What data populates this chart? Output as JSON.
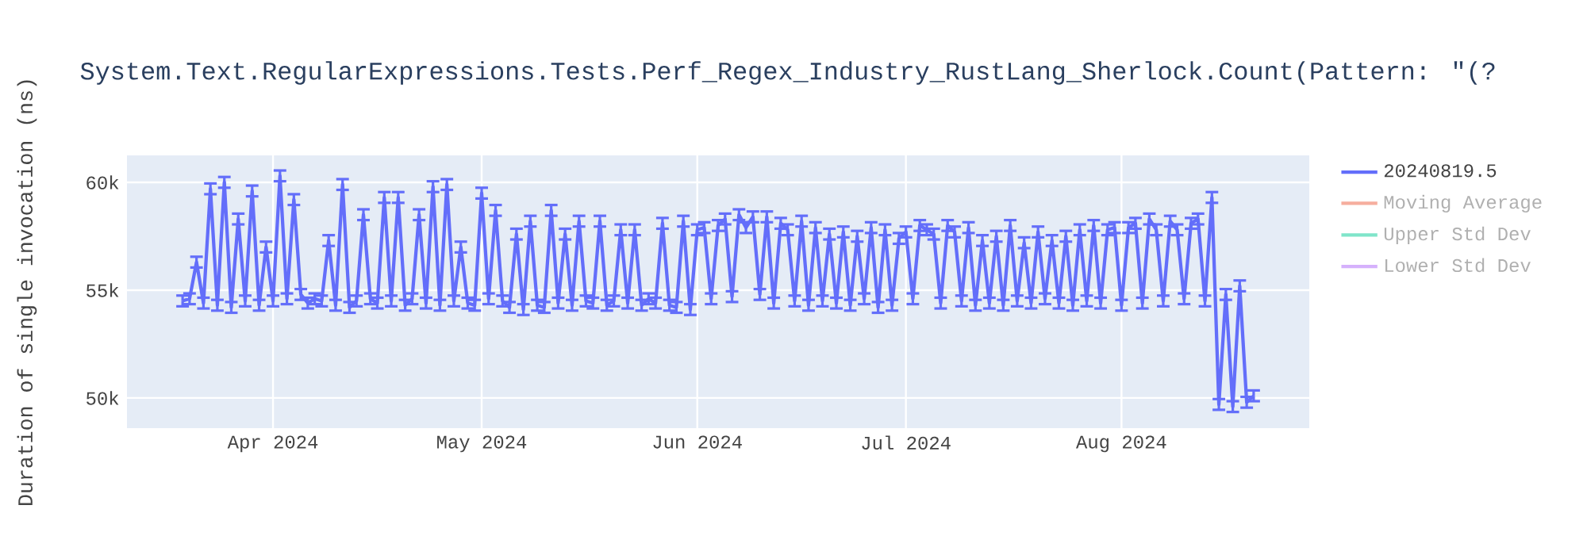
{
  "chart_data": {
    "type": "line",
    "title": "System.Text.RegularExpressions.Tests.Perf_Regex_Industry_RustLang_Sherlock.Count(Pattern: \"(?",
    "ylabel": "Duration of single invocation (ns)",
    "x": [
      "2024-03-19",
      "2024-03-20",
      "2024-03-21",
      "2024-03-22",
      "2024-03-23",
      "2024-03-24",
      "2024-03-25",
      "2024-03-26",
      "2024-03-27",
      "2024-03-28",
      "2024-03-29",
      "2024-03-30",
      "2024-03-31",
      "2024-04-01",
      "2024-04-02",
      "2024-04-03",
      "2024-04-04",
      "2024-04-05",
      "2024-04-06",
      "2024-04-07",
      "2024-04-08",
      "2024-04-09",
      "2024-04-10",
      "2024-04-11",
      "2024-04-12",
      "2024-04-13",
      "2024-04-14",
      "2024-04-15",
      "2024-04-16",
      "2024-04-17",
      "2024-04-18",
      "2024-04-19",
      "2024-04-20",
      "2024-04-21",
      "2024-04-22",
      "2024-04-23",
      "2024-04-24",
      "2024-04-25",
      "2024-04-26",
      "2024-04-27",
      "2024-04-28",
      "2024-04-29",
      "2024-04-30",
      "2024-05-01",
      "2024-05-02",
      "2024-05-03",
      "2024-05-04",
      "2024-05-05",
      "2024-05-06",
      "2024-05-07",
      "2024-05-08",
      "2024-05-09",
      "2024-05-10",
      "2024-05-11",
      "2024-05-12",
      "2024-05-13",
      "2024-05-14",
      "2024-05-15",
      "2024-05-16",
      "2024-05-17",
      "2024-05-18",
      "2024-05-19",
      "2024-05-20",
      "2024-05-21",
      "2024-05-22",
      "2024-05-23",
      "2024-05-24",
      "2024-05-25",
      "2024-05-26",
      "2024-05-27",
      "2024-05-28",
      "2024-05-29",
      "2024-05-30",
      "2024-05-31",
      "2024-06-01",
      "2024-06-02",
      "2024-06-03",
      "2024-06-04",
      "2024-06-05",
      "2024-06-06",
      "2024-06-07",
      "2024-06-08",
      "2024-06-09",
      "2024-06-10",
      "2024-06-11",
      "2024-06-12",
      "2024-06-13",
      "2024-06-14",
      "2024-06-15",
      "2024-06-16",
      "2024-06-17",
      "2024-06-18",
      "2024-06-19",
      "2024-06-20",
      "2024-06-21",
      "2024-06-22",
      "2024-06-23",
      "2024-06-24",
      "2024-06-25",
      "2024-06-26",
      "2024-06-27",
      "2024-06-28",
      "2024-06-29",
      "2024-06-30",
      "2024-07-01",
      "2024-07-02",
      "2024-07-03",
      "2024-07-04",
      "2024-07-05",
      "2024-07-06",
      "2024-07-07",
      "2024-07-08",
      "2024-07-09",
      "2024-07-10",
      "2024-07-11",
      "2024-07-12",
      "2024-07-13",
      "2024-07-14",
      "2024-07-15",
      "2024-07-16",
      "2024-07-17",
      "2024-07-18",
      "2024-07-19",
      "2024-07-20",
      "2024-07-21",
      "2024-07-22",
      "2024-07-23",
      "2024-07-24",
      "2024-07-25",
      "2024-07-26",
      "2024-07-27",
      "2024-07-28",
      "2024-07-29",
      "2024-07-30",
      "2024-07-31",
      "2024-08-01",
      "2024-08-02",
      "2024-08-03",
      "2024-08-04",
      "2024-08-05",
      "2024-08-06",
      "2024-08-07",
      "2024-08-08",
      "2024-08-09",
      "2024-08-10",
      "2024-08-11",
      "2024-08-12",
      "2024-08-13",
      "2024-08-14",
      "2024-08-15",
      "2024-08-16",
      "2024-08-17",
      "2024-08-18",
      "2024-08-19",
      "2024-08-20"
    ],
    "series": [
      {
        "name": "20240819.5",
        "color": "#636efa",
        "values": [
          54500,
          54600,
          56300,
          54400,
          59700,
          54300,
          60000,
          54200,
          58300,
          54500,
          59600,
          54300,
          57000,
          54500,
          60300,
          54600,
          59200,
          54800,
          54400,
          54600,
          54500,
          57300,
          54300,
          59900,
          54200,
          54500,
          58500,
          54600,
          54400,
          59300,
          54500,
          59300,
          54300,
          54600,
          58500,
          54400,
          59800,
          54300,
          59900,
          54500,
          57000,
          54400,
          54300,
          59500,
          54600,
          58700,
          54500,
          54200,
          57600,
          54100,
          58200,
          54300,
          54200,
          58700,
          54400,
          57600,
          54300,
          58200,
          54500,
          54400,
          58200,
          54300,
          54500,
          57800,
          54400,
          57800,
          54300,
          54600,
          54400,
          58100,
          54300,
          54200,
          58200,
          54100,
          57800,
          57900,
          54600,
          58000,
          58300,
          54700,
          58500,
          57900,
          58400,
          54800,
          58400,
          54400,
          58100,
          57800,
          54500,
          58200,
          54300,
          57900,
          54500,
          57600,
          54400,
          57700,
          54300,
          57500,
          54600,
          57900,
          54200,
          57800,
          54300,
          57400,
          57700,
          54600,
          58000,
          57800,
          57600,
          54400,
          58000,
          57700,
          54500,
          57900,
          54300,
          57300,
          54400,
          57500,
          54300,
          58000,
          54500,
          57200,
          54400,
          57700,
          54600,
          57300,
          54400,
          57500,
          54300,
          57800,
          54500,
          58000,
          54400,
          57800,
          57900,
          54300,
          57900,
          58100,
          54400,
          58300,
          57800,
          54500,
          58200,
          57800,
          54600,
          58100,
          58300,
          54500,
          59300,
          49700,
          54800,
          49600,
          55200,
          49800,
          50100
        ],
        "errors": [
          250,
          250,
          250,
          250,
          250,
          250,
          250,
          250,
          250,
          250,
          250,
          250,
          250,
          250,
          250,
          250,
          250,
          250,
          250,
          250,
          250,
          250,
          250,
          250,
          250,
          250,
          250,
          250,
          250,
          250,
          250,
          250,
          250,
          250,
          250,
          250,
          250,
          250,
          250,
          250,
          250,
          250,
          250,
          250,
          250,
          250,
          250,
          250,
          250,
          250,
          250,
          250,
          250,
          250,
          250,
          250,
          250,
          250,
          250,
          250,
          250,
          250,
          250,
          250,
          250,
          250,
          250,
          250,
          250,
          250,
          250,
          250,
          250,
          250,
          250,
          250,
          250,
          250,
          250,
          250,
          250,
          250,
          250,
          250,
          250,
          250,
          250,
          250,
          250,
          250,
          250,
          250,
          250,
          250,
          250,
          250,
          250,
          250,
          250,
          250,
          250,
          250,
          250,
          250,
          250,
          250,
          250,
          250,
          250,
          250,
          250,
          250,
          250,
          250,
          250,
          250,
          250,
          250,
          250,
          250,
          250,
          250,
          250,
          250,
          250,
          250,
          250,
          250,
          250,
          250,
          250,
          250,
          250,
          250,
          250,
          250,
          250,
          250,
          250,
          250,
          250,
          250,
          250,
          250,
          250,
          250,
          250,
          250,
          250,
          250,
          250,
          250,
          250,
          250,
          250
        ]
      },
      {
        "name": "Moving Average",
        "color": "#f6ae9e",
        "values": [
          null,
          null,
          null,
          null,
          null,
          null,
          null,
          null,
          null,
          null,
          null,
          null,
          null,
          null,
          null,
          null,
          null,
          null,
          null,
          null,
          null,
          null,
          null,
          null,
          null,
          null,
          null,
          null,
          null,
          null,
          null,
          null,
          null,
          null,
          null,
          null,
          null,
          null,
          null,
          null,
          null,
          null,
          null,
          null,
          null,
          null,
          null,
          null,
          null,
          null,
          null,
          null,
          null,
          null,
          null,
          null,
          null,
          null,
          null,
          null,
          null,
          null,
          null,
          null,
          null,
          null,
          null,
          null,
          null,
          null,
          null,
          null,
          null,
          null,
          null,
          null,
          null,
          null,
          null,
          null,
          null,
          null,
          null,
          null,
          null,
          null,
          null,
          null,
          null,
          null,
          null,
          null,
          null,
          null,
          null,
          null,
          null,
          null,
          null,
          null,
          null,
          null,
          null,
          null,
          null,
          null,
          null,
          null,
          null,
          null,
          null,
          null,
          null,
          null,
          null,
          null,
          null,
          null,
          null,
          null,
          null,
          null,
          null,
          null,
          null,
          null,
          null,
          null,
          null,
          null,
          null,
          null,
          null,
          null,
          null,
          null,
          null,
          null,
          null,
          null,
          null,
          null,
          null,
          null,
          null,
          null,
          null,
          null,
          null,
          null,
          null,
          null,
          null,
          null,
          null
        ]
      },
      {
        "name": "Upper Std Dev",
        "color": "#80e5ca",
        "values": [
          null,
          null,
          null,
          null,
          null,
          null,
          null,
          null,
          null,
          null,
          null,
          null,
          null,
          null,
          null,
          null,
          null,
          null,
          null,
          null,
          null,
          null,
          null,
          null,
          null,
          null,
          null,
          null,
          null,
          null,
          null,
          null,
          null,
          null,
          null,
          null,
          null,
          null,
          null,
          null,
          null,
          null,
          null,
          null,
          null,
          null,
          null,
          null,
          null,
          null,
          null,
          null,
          null,
          null,
          null,
          null,
          null,
          null,
          null,
          null,
          null,
          null,
          null,
          null,
          null,
          null,
          null,
          null,
          null,
          null,
          null,
          null,
          null,
          null,
          null,
          null,
          null,
          null,
          null,
          null,
          null,
          null,
          null,
          null,
          null,
          null,
          null,
          null,
          null,
          null,
          null,
          null,
          null,
          null,
          null,
          null,
          null,
          null,
          null,
          null,
          null,
          null,
          null,
          null,
          null,
          null,
          null,
          null,
          null,
          null,
          null,
          null,
          null,
          null,
          null,
          null,
          null,
          null,
          null,
          null,
          null,
          null,
          null,
          null,
          null,
          null,
          null,
          null,
          null,
          null,
          null,
          null,
          null,
          null,
          null,
          null,
          null,
          null,
          null,
          null,
          null,
          null,
          null,
          null,
          null,
          null,
          null,
          null,
          null,
          null,
          null,
          null,
          null,
          null,
          null
        ]
      },
      {
        "name": "Lower Std Dev",
        "color": "#d5b1fc",
        "values": [
          null,
          null,
          null,
          null,
          null,
          null,
          null,
          null,
          null,
          null,
          null,
          null,
          null,
          null,
          null,
          null,
          null,
          null,
          null,
          null,
          null,
          null,
          null,
          null,
          null,
          null,
          null,
          null,
          null,
          null,
          null,
          null,
          null,
          null,
          null,
          null,
          null,
          null,
          null,
          null,
          null,
          null,
          null,
          null,
          null,
          null,
          null,
          null,
          null,
          null,
          null,
          null,
          null,
          null,
          null,
          null,
          null,
          null,
          null,
          null,
          null,
          null,
          null,
          null,
          null,
          null,
          null,
          null,
          null,
          null,
          null,
          null,
          null,
          null,
          null,
          null,
          null,
          null,
          null,
          null,
          null,
          null,
          null,
          null,
          null,
          null,
          null,
          null,
          null,
          null,
          null,
          null,
          null,
          null,
          null,
          null,
          null,
          null,
          null,
          null,
          null,
          null,
          null,
          null,
          null,
          null,
          null,
          null,
          null,
          null,
          null,
          null,
          null,
          null,
          null,
          null,
          null,
          null,
          null,
          null,
          null,
          null,
          null,
          null,
          null,
          null,
          null,
          null,
          null,
          null,
          null,
          null,
          null,
          null,
          null,
          null,
          null,
          null,
          null,
          null,
          null,
          null,
          null,
          null,
          null,
          null,
          null,
          null,
          null,
          null,
          null,
          null,
          null,
          null,
          null
        ]
      }
    ],
    "xlim": [
      "2024-03-11",
      "2024-08-28"
    ],
    "xticks": [
      {
        "value": "2024-04-01",
        "label": "Apr 2024"
      },
      {
        "value": "2024-05-01",
        "label": "May 2024"
      },
      {
        "value": "2024-06-01",
        "label": "Jun 2024"
      },
      {
        "value": "2024-07-01",
        "label": "Jul 2024"
      },
      {
        "value": "2024-08-01",
        "label": "Aug 2024"
      }
    ],
    "ylim": [
      48600,
      61250
    ],
    "yticks": [
      {
        "value": 50000,
        "label": "50k"
      },
      {
        "value": 55000,
        "label": "55k"
      },
      {
        "value": 60000,
        "label": "60k"
      }
    ],
    "grid": true,
    "legend": "top right",
    "marker": "none",
    "line_style": "solid"
  }
}
